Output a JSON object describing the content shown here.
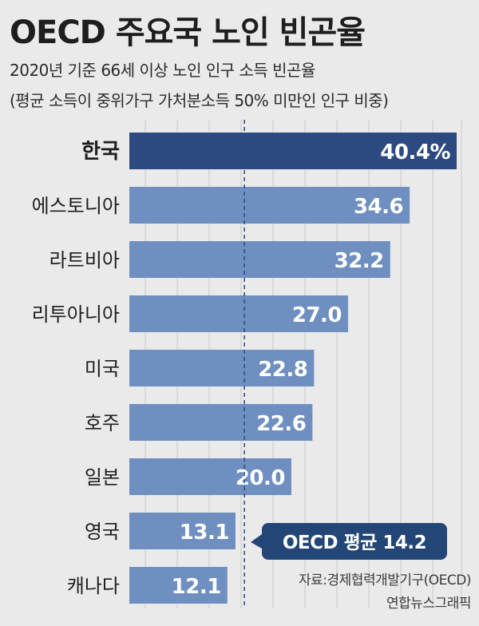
{
  "header": {
    "title": "OECD 주요국 노인 빈곤율",
    "subtitle": "2020년 기준 66세 이상 노인 인구 소득 빈곤율",
    "note": "(평균 소득이 중위가구 가처분소득 50% 미만인 인구 비중)"
  },
  "footer": {
    "source": "자료:경제협력개발기구(OECD)",
    "credit": "연합뉴스그래픽"
  },
  "colors": {
    "highlight_bar": "#2d4a80",
    "bar": "#6e8fc0",
    "background": "#eaeaea",
    "grid": "#c9c9c9",
    "avg_line": "#2d4a80",
    "callout": "#244676"
  },
  "chart_data": {
    "type": "bar",
    "orientation": "horizontal",
    "categories": [
      "한국",
      "에스토니아",
      "라트비아",
      "리투아니아",
      "미국",
      "호주",
      "일본",
      "영국",
      "캐나다"
    ],
    "values": [
      40.4,
      34.6,
      32.2,
      27.0,
      22.8,
      22.6,
      20.0,
      13.1,
      12.1
    ],
    "value_labels": [
      "40.4%",
      "34.6",
      "32.2",
      "27.0",
      "22.8",
      "22.6",
      "20.0",
      "13.1",
      "12.1"
    ],
    "highlight": "한국",
    "reference_line": {
      "label": "OECD 평균 14.2",
      "value": 14.2
    },
    "grid": true
  }
}
